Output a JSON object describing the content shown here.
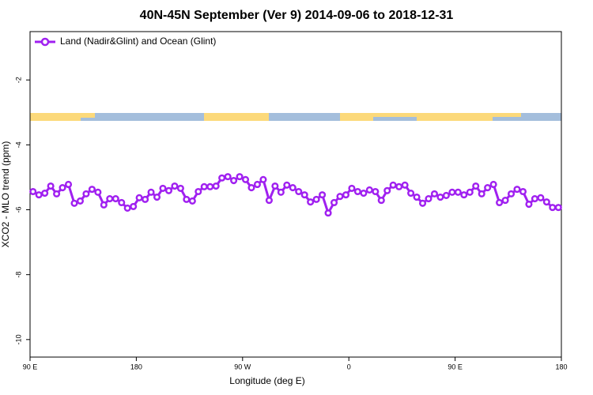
{
  "chart_data": {
    "type": "line",
    "title": "40N-45N September (Ver 9)   2014-09-06 to 2018-12-31",
    "x_label": "Longitude (deg E)",
    "y_label": "XCO2 - MLO trend (ppm)",
    "xlim": [
      90,
      540
    ],
    "ylim": [
      -10.54,
      -0.51
    ],
    "xticks": [
      {
        "value": 90,
        "label": "90 E"
      },
      {
        "value": 180,
        "label": "180"
      },
      {
        "value": 270,
        "label": "90 W"
      },
      {
        "value": 360,
        "label": "0"
      },
      {
        "value": 450,
        "label": "90 E"
      },
      {
        "value": 540,
        "label": "180"
      }
    ],
    "yticks": [
      -2,
      -4,
      -6,
      -8,
      -10
    ],
    "legend": "top-left",
    "x": [
      92.5,
      97.5,
      102.5,
      107.5,
      112.5,
      117.5,
      122.5,
      127.5,
      132.5,
      137.5,
      142.5,
      147.5,
      152.5,
      157.5,
      162.5,
      167.5,
      172.5,
      177.5,
      182.5,
      187.5,
      192.5,
      197.5,
      202.5,
      207.5,
      212.5,
      217.5,
      222.5,
      227.5,
      232.5,
      237.5,
      242.5,
      247.5,
      252.5,
      257.5,
      262.5,
      267.5,
      272.5,
      277.5,
      282.5,
      287.5,
      292.5,
      297.5,
      302.5,
      307.5,
      312.5,
      317.5,
      322.5,
      327.5,
      332.5,
      337.5,
      342.5,
      347.5,
      352.5,
      357.5,
      362.5,
      367.5,
      372.5,
      377.5,
      382.5,
      387.5,
      392.5,
      397.5,
      402.5,
      407.5,
      412.5,
      417.5,
      422.5,
      427.5,
      432.5,
      437.5,
      442.5,
      447.5,
      452.5,
      457.5,
      462.5,
      467.5,
      472.5,
      477.5,
      482.5,
      487.5,
      492.5,
      497.5,
      502.5,
      507.5,
      512.5,
      517.5,
      522.5,
      527.5,
      532.5,
      537.5
    ],
    "series": [
      {
        "name": "Land (Nadir&Glint) and Ocean (Glint)",
        "color": "#a020f0",
        "values": [
          -5.44,
          -5.54,
          -5.49,
          -5.27,
          -5.51,
          -5.32,
          -5.22,
          -5.8,
          -5.73,
          -5.51,
          -5.37,
          -5.46,
          -5.85,
          -5.66,
          -5.66,
          -5.78,
          -5.95,
          -5.9,
          -5.63,
          -5.68,
          -5.46,
          -5.61,
          -5.34,
          -5.41,
          -5.27,
          -5.34,
          -5.68,
          -5.73,
          -5.44,
          -5.29,
          -5.29,
          -5.27,
          -5.02,
          -4.98,
          -5.1,
          -4.98,
          -5.07,
          -5.32,
          -5.22,
          -5.07,
          -5.71,
          -5.27,
          -5.46,
          -5.24,
          -5.32,
          -5.44,
          -5.54,
          -5.76,
          -5.68,
          -5.54,
          -6.1,
          -5.78,
          -5.59,
          -5.54,
          -5.34,
          -5.44,
          -5.49,
          -5.39,
          -5.44,
          -5.71,
          -5.41,
          -5.24,
          -5.29,
          -5.24,
          -5.49,
          -5.61,
          -5.8,
          -5.66,
          -5.51,
          -5.61,
          -5.56,
          -5.46,
          -5.46,
          -5.54,
          -5.46,
          -5.27,
          -5.51,
          -5.32,
          -5.22,
          -5.78,
          -5.71,
          -5.51,
          -5.37,
          -5.44,
          -5.83,
          -5.66,
          -5.63,
          -5.76,
          -5.93,
          -5.93
        ]
      }
    ]
  }
}
